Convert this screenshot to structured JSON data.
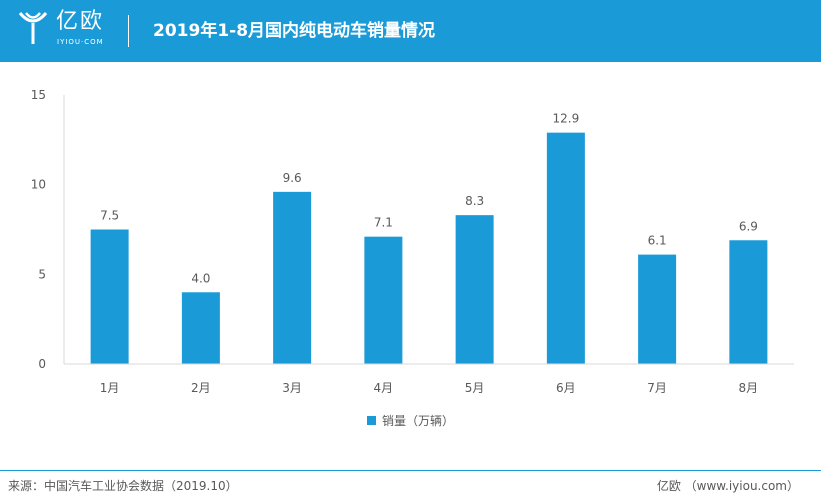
{
  "header": {
    "logo_name": "亿欧",
    "logo_sub": "IYIOU·COM",
    "title": "2019年1-8月国内纯电动车销量情况"
  },
  "colors": {
    "accent": "#1a9bd7",
    "text": "#595959",
    "axis": "#d9d9d9"
  },
  "chart_data": {
    "type": "bar",
    "categories": [
      "1月",
      "2月",
      "3月",
      "4月",
      "5月",
      "6月",
      "7月",
      "8月"
    ],
    "series": [
      {
        "name": "销量（万辆）",
        "values": [
          7.5,
          4.0,
          9.6,
          7.1,
          8.3,
          12.9,
          6.1,
          6.9
        ]
      }
    ],
    "data_labels": [
      "7.5",
      "4.0",
      "9.6",
      "7.1",
      "8.3",
      "12.9",
      "6.1",
      "6.9"
    ],
    "yticks": [
      "0",
      "5",
      "10",
      "15"
    ],
    "ylim": [
      0,
      15
    ],
    "legend_position": "bottom",
    "grid": false
  },
  "footer": {
    "source": "来源：中国汽车工业协会数据（2019.10）",
    "brand": "亿欧 （www.iyiou.com）"
  }
}
